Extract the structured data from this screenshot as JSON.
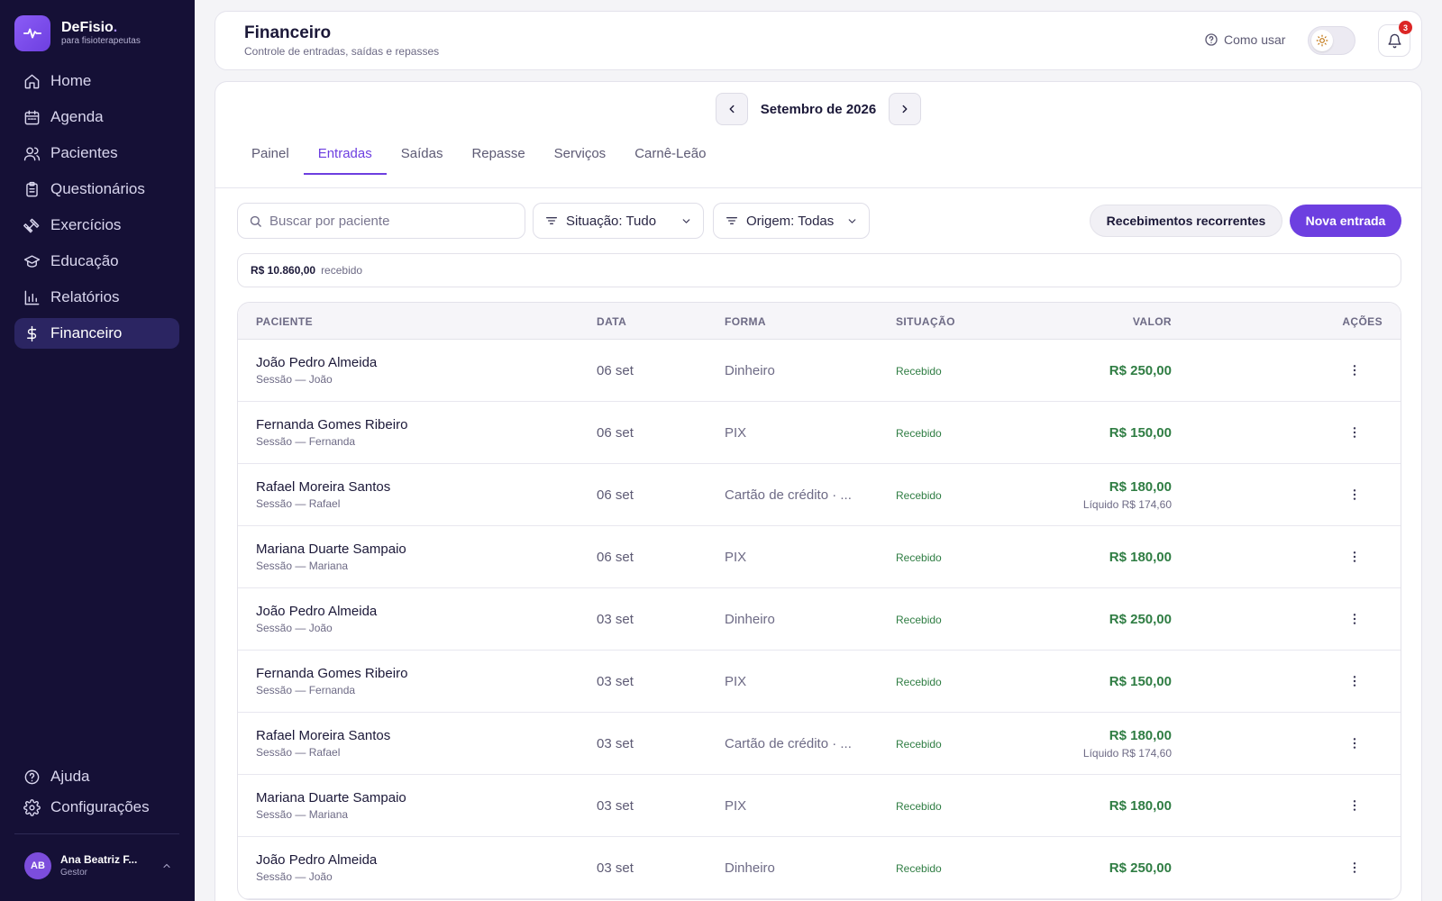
{
  "brand": {
    "name": "DeFisio",
    "dot": ".",
    "tagline": "para fisioterapeutas"
  },
  "nav": {
    "items": [
      {
        "label": "Home",
        "icon": "home-icon"
      },
      {
        "label": "Agenda",
        "icon": "calendar-icon"
      },
      {
        "label": "Pacientes",
        "icon": "users-icon"
      },
      {
        "label": "Questionários",
        "icon": "clipboard-icon"
      },
      {
        "label": "Exercícios",
        "icon": "dumbbell-icon"
      },
      {
        "label": "Educação",
        "icon": "graduation-cap-icon"
      },
      {
        "label": "Relatórios",
        "icon": "bar-chart-icon"
      },
      {
        "label": "Financeiro",
        "icon": "dollar-icon",
        "active": true
      }
    ],
    "bottom": [
      {
        "label": "Ajuda",
        "icon": "help-circle-icon"
      },
      {
        "label": "Configurações",
        "icon": "gear-icon"
      }
    ]
  },
  "user": {
    "initials": "AB",
    "name": "Ana Beatriz F...",
    "role": "Gestor"
  },
  "header": {
    "title": "Financeiro",
    "subtitle": "Controle de entradas, saídas e repasses",
    "help_label": "Como usar",
    "notification_count": "3"
  },
  "month": {
    "label": "Setembro de 2026"
  },
  "tabs": [
    {
      "label": "Painel"
    },
    {
      "label": "Entradas",
      "active": true
    },
    {
      "label": "Saídas"
    },
    {
      "label": "Repasse"
    },
    {
      "label": "Serviços"
    },
    {
      "label": "Carnê-Leão"
    }
  ],
  "toolbar": {
    "search_placeholder": "Buscar por paciente",
    "status_filter": "Situação: Tudo",
    "origin_filter": "Origem: Todas",
    "recurring_label": "Recebimentos recorrentes",
    "new_entry_label": "Nova entrada"
  },
  "summary": {
    "value": "R$ 10.860,00",
    "label": "recebido"
  },
  "table": {
    "columns": {
      "patient": "PACIENTE",
      "date": "DATA",
      "method": "FORMA",
      "status": "SITUAÇÃO",
      "value": "VALOR",
      "actions": "AÇÕES"
    },
    "rows": [
      {
        "name": "João Pedro Almeida",
        "desc": "Sessão — João",
        "date": "06 set",
        "method": "Dinheiro",
        "status": "Recebido",
        "value": "R$ 250,00",
        "net": ""
      },
      {
        "name": "Fernanda Gomes Ribeiro",
        "desc": "Sessão — Fernanda",
        "date": "06 set",
        "method": "PIX",
        "status": "Recebido",
        "value": "R$ 150,00",
        "net": ""
      },
      {
        "name": "Rafael Moreira Santos",
        "desc": "Sessão — Rafael",
        "date": "06 set",
        "method": "Cartão de crédito · ...",
        "status": "Recebido",
        "value": "R$ 180,00",
        "net": "Líquido R$ 174,60"
      },
      {
        "name": "Mariana Duarte Sampaio",
        "desc": "Sessão — Mariana",
        "date": "06 set",
        "method": "PIX",
        "status": "Recebido",
        "value": "R$ 180,00",
        "net": ""
      },
      {
        "name": "João Pedro Almeida",
        "desc": "Sessão — João",
        "date": "03 set",
        "method": "Dinheiro",
        "status": "Recebido",
        "value": "R$ 250,00",
        "net": ""
      },
      {
        "name": "Fernanda Gomes Ribeiro",
        "desc": "Sessão — Fernanda",
        "date": "03 set",
        "method": "PIX",
        "status": "Recebido",
        "value": "R$ 150,00",
        "net": ""
      },
      {
        "name": "Rafael Moreira Santos",
        "desc": "Sessão — Rafael",
        "date": "03 set",
        "method": "Cartão de crédito · ...",
        "status": "Recebido",
        "value": "R$ 180,00",
        "net": "Líquido R$ 174,60"
      },
      {
        "name": "Mariana Duarte Sampaio",
        "desc": "Sessão — Mariana",
        "date": "03 set",
        "method": "PIX",
        "status": "Recebido",
        "value": "R$ 180,00",
        "net": ""
      },
      {
        "name": "João Pedro Almeida",
        "desc": "Sessão — João",
        "date": "03 set",
        "method": "Dinheiro",
        "status": "Recebido",
        "value": "R$ 250,00",
        "net": ""
      }
    ]
  },
  "colors": {
    "sidebar": "#151036",
    "accent": "#6d3fe0",
    "positive": "#2f7d43"
  }
}
